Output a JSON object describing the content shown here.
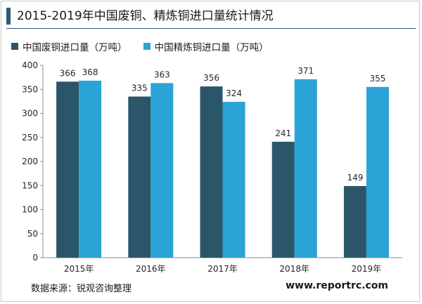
{
  "colors": {
    "series1": "#2b5669",
    "series2": "#2aa3d6",
    "accent": "#2a5d72"
  },
  "chart_data": {
    "type": "bar",
    "title": "2015-2019年中国废铜、精炼铜进口量统计情况",
    "categories": [
      "2015年",
      "2016年",
      "2017年",
      "2018年",
      "2019年"
    ],
    "series": [
      {
        "name": "中国废铜进口量（万吨）",
        "values": [
          366,
          335,
          356,
          241,
          149
        ]
      },
      {
        "name": "中国精炼铜进口量（万吨）",
        "values": [
          368,
          363,
          324,
          371,
          355
        ]
      }
    ],
    "ylim": [
      0,
      400
    ],
    "yticks": [
      0,
      50,
      100,
      150,
      200,
      250,
      300,
      350,
      400
    ],
    "grid": false,
    "legend_position": "top-left",
    "data_labels": true
  },
  "footer": {
    "source": "数据来源：锐观咨询整理",
    "website": "www.reportrc.com"
  }
}
